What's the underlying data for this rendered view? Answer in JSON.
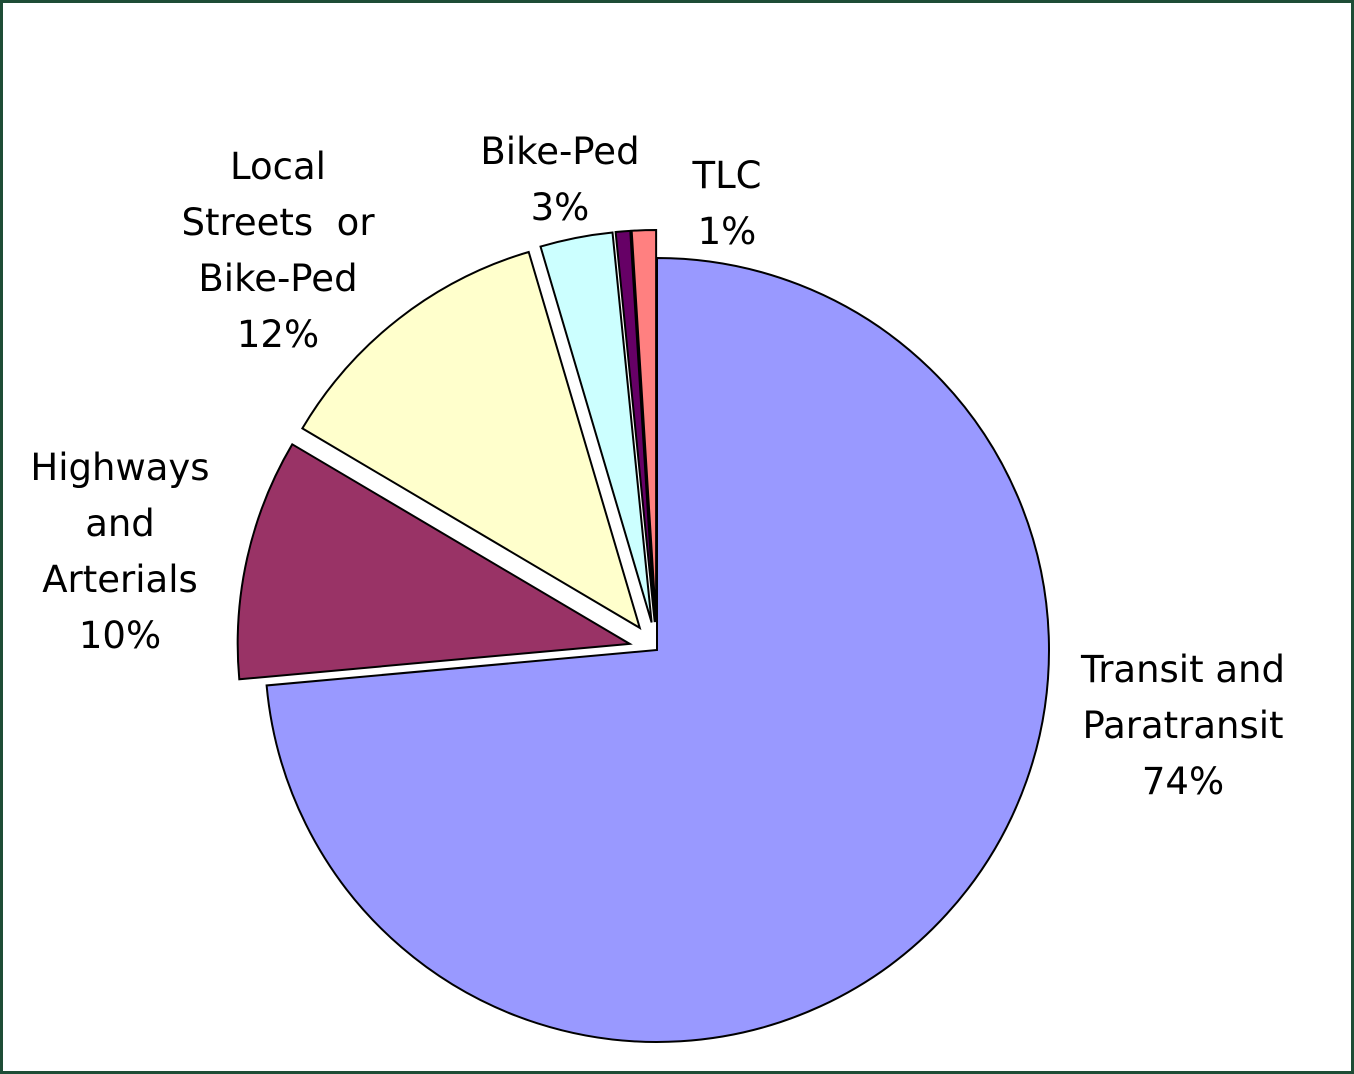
{
  "chart_data": {
    "type": "pie",
    "categories": [
      "Transit and\nParatransit",
      "Highways\nand\nArterials",
      "Local\nStreets  or\nBike-Ped",
      "Bike-Ped",
      null,
      "TLC"
    ],
    "values": [
      74,
      10,
      12,
      3,
      0.6,
      1
    ],
    "value_labels": [
      "74%",
      "10%",
      "12%",
      "3%",
      null,
      "1%"
    ],
    "colors": [
      "#9999ff",
      "#993366",
      "#ffffcc",
      "#ccffff",
      "#660066",
      "#ff8080"
    ]
  }
}
